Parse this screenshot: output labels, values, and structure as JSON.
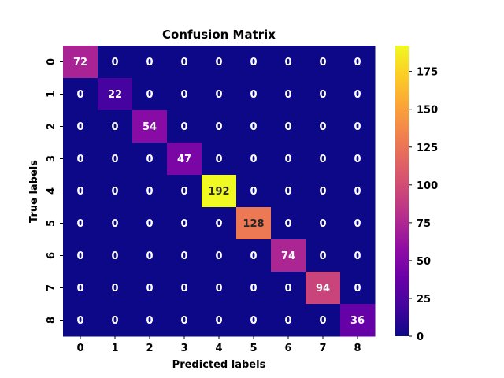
{
  "chart_data": {
    "type": "heatmap",
    "title": "Confusion Matrix",
    "xlabel": "Predicted labels",
    "ylabel": "True labels",
    "x_categories": [
      "0",
      "1",
      "2",
      "3",
      "4",
      "5",
      "6",
      "7",
      "8"
    ],
    "y_categories": [
      "0",
      "1",
      "2",
      "3",
      "4",
      "5",
      "6",
      "7",
      "8"
    ],
    "values": [
      [
        72,
        0,
        0,
        0,
        0,
        0,
        0,
        0,
        0
      ],
      [
        0,
        22,
        0,
        0,
        0,
        0,
        0,
        0,
        0
      ],
      [
        0,
        0,
        54,
        0,
        0,
        0,
        0,
        0,
        0
      ],
      [
        0,
        0,
        0,
        47,
        0,
        0,
        0,
        0,
        0
      ],
      [
        0,
        0,
        0,
        0,
        192,
        0,
        0,
        0,
        0
      ],
      [
        0,
        0,
        0,
        0,
        0,
        128,
        0,
        0,
        0
      ],
      [
        0,
        0,
        0,
        0,
        0,
        0,
        74,
        0,
        0
      ],
      [
        0,
        0,
        0,
        0,
        0,
        0,
        0,
        94,
        0
      ],
      [
        0,
        0,
        0,
        0,
        0,
        0,
        0,
        0,
        36
      ]
    ],
    "colormap": "plasma",
    "value_range": [
      0,
      192
    ],
    "colorbar_ticks": [
      0,
      25,
      50,
      75,
      100,
      125,
      150,
      175
    ]
  }
}
